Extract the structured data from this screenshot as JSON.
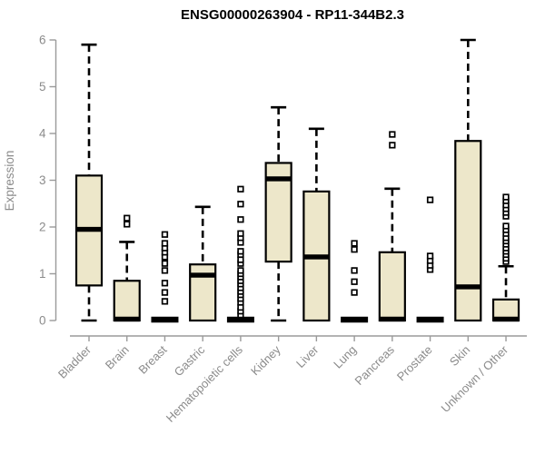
{
  "chart_data": {
    "type": "boxplot",
    "title": "ENSG00000263904 - RP11-344B2.3",
    "ylabel": "Expression",
    "xlabel": "",
    "ylim": [
      0,
      6
    ],
    "yticks": [
      0,
      1,
      2,
      3,
      4,
      5,
      6
    ],
    "grid": false,
    "legend": false,
    "categories": [
      "Bladder",
      "Brain",
      "Breast",
      "Gastric",
      "Hematopoietic cells",
      "Kidney",
      "Liver",
      "Lung",
      "Pancreas",
      "Prostate",
      "Skin",
      "Unknown / Other"
    ],
    "boxes": [
      {
        "category": "Bladder",
        "q1": 0.75,
        "median": 1.95,
        "q3": 3.1,
        "whisker_low": 0,
        "whisker_high": 5.9,
        "outliers": []
      },
      {
        "category": "Brain",
        "q1": 0,
        "median": 0.03,
        "q3": 0.85,
        "whisker_low": 0,
        "whisker_high": 1.68,
        "outliers": [
          2.06,
          2.19
        ]
      },
      {
        "category": "Breast",
        "q1": 0,
        "median": 0.02,
        "q3": 0.03,
        "whisker_low": 0,
        "whisker_high": 0.03,
        "outliers": [
          0.41,
          0.6,
          0.8,
          1.07,
          1.22,
          1.36,
          1.46,
          1.55,
          1.65,
          1.84
        ]
      },
      {
        "category": "Gastric",
        "q1": 0,
        "median": 0.97,
        "q3": 1.2,
        "whisker_low": 0,
        "whisker_high": 2.43,
        "outliers": []
      },
      {
        "category": "Hematopoietic cells",
        "q1": 0,
        "median": 0.02,
        "q3": 0.03,
        "whisker_low": 0,
        "whisker_high": 0.03,
        "outliers": [
          0.12,
          0.2,
          0.28,
          0.39,
          0.47,
          0.55,
          0.62,
          0.7,
          0.78,
          0.85,
          0.93,
          1.0,
          1.07,
          1.22,
          1.3,
          1.41,
          1.48,
          1.67,
          1.77,
          1.86,
          2.16,
          2.49,
          2.81
        ]
      },
      {
        "category": "Kidney",
        "q1": 1.26,
        "median": 3.03,
        "q3": 3.37,
        "whisker_low": 0,
        "whisker_high": 4.56,
        "outliers": []
      },
      {
        "category": "Liver",
        "q1": 0,
        "median": 1.36,
        "q3": 2.76,
        "whisker_low": 0,
        "whisker_high": 4.1,
        "outliers": []
      },
      {
        "category": "Lung",
        "q1": 0,
        "median": 0.02,
        "q3": 0.03,
        "whisker_low": 0,
        "whisker_high": 0.03,
        "outliers": [
          0.6,
          0.83,
          1.07,
          1.52,
          1.65
        ]
      },
      {
        "category": "Pancreas",
        "q1": 0,
        "median": 0.03,
        "q3": 1.46,
        "whisker_low": 0,
        "whisker_high": 2.82,
        "outliers": [
          3.75,
          3.98
        ]
      },
      {
        "category": "Prostate",
        "q1": 0,
        "median": 0.02,
        "q3": 0.03,
        "whisker_low": 0,
        "whisker_high": 0.03,
        "outliers": [
          1.09,
          1.18,
          1.28,
          1.38,
          2.58
        ]
      },
      {
        "category": "Skin",
        "q1": 0,
        "median": 0.72,
        "q3": 3.84,
        "whisker_low": 0,
        "whisker_high": 6.0,
        "outliers": []
      },
      {
        "category": "Unknown / Other",
        "q1": 0,
        "median": 0.03,
        "q3": 0.45,
        "whisker_low": 0,
        "whisker_high": 1.16,
        "outliers": [
          1.26,
          1.33,
          1.41,
          1.48,
          1.55,
          1.63,
          1.7,
          1.77,
          1.86,
          1.94,
          2.02,
          2.23,
          2.31,
          2.39,
          2.47,
          2.56,
          2.64
        ]
      }
    ],
    "colors": {
      "box_fill": "#EDE7CA",
      "box_stroke": "#000000",
      "median": "#000000",
      "whisker": "#000000",
      "outlier_stroke": "#000000",
      "outlier_fill": "#ffffff",
      "axis": "#9a9a9a",
      "tick_label": "#8b8b8b",
      "title": "#000000"
    }
  }
}
